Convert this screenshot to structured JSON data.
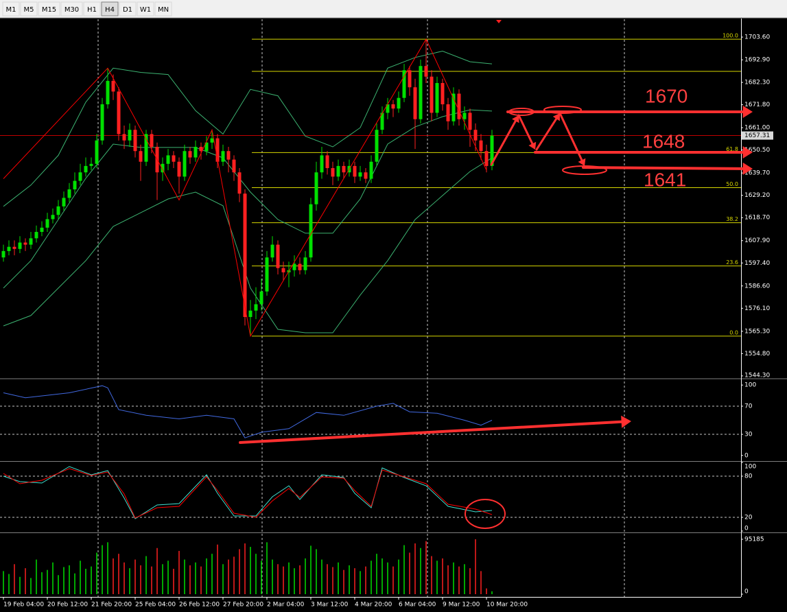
{
  "toolbar": {
    "buttons": [
      "M1",
      "M5",
      "M15",
      "M30",
      "H1",
      "H4",
      "D1",
      "W1",
      "MN"
    ],
    "active": "H4"
  },
  "chart_data": [
    {
      "type": "candlestick",
      "categories": [
        "19 Feb 04:00",
        null,
        null,
        null,
        null,
        null,
        null,
        null,
        "20 Feb 12:00",
        null,
        null,
        null,
        null,
        null,
        null,
        null,
        "21 Feb 20:00",
        null,
        null,
        null,
        null,
        null,
        null,
        null,
        "25 Feb 04:00",
        null,
        null,
        null,
        null,
        null,
        null,
        null,
        "26 Feb 12:00",
        null,
        null,
        null,
        null,
        null,
        null,
        null,
        "27 Feb 20:00",
        null,
        null,
        null,
        null,
        null,
        null,
        null,
        "2 Mar 04:00",
        null,
        null,
        null,
        null,
        null,
        null,
        null,
        "3 Mar 12:00",
        null,
        null,
        null,
        null,
        null,
        null,
        null,
        "4 Mar 20:00",
        null,
        null,
        null,
        null,
        null,
        null,
        null,
        "6 Mar 04:00",
        null,
        null,
        null,
        null,
        null,
        null,
        null,
        "9 Mar 12:00",
        null,
        null,
        null,
        null,
        null,
        null,
        null,
        "10 Mar 20:00",
        null
      ],
      "open": [
        1600,
        1603,
        1605,
        1604,
        1607,
        1606,
        1609,
        1612,
        1614,
        1618,
        1620,
        1624,
        1628,
        1632,
        1636,
        1640,
        1643,
        1644,
        1655,
        1672,
        1683,
        1678,
        1658,
        1655,
        1660,
        1650,
        1645,
        1658,
        1652,
        1640,
        1644,
        1648,
        1645,
        1638,
        1650,
        1647,
        1652,
        1650,
        1654,
        1656,
        1645,
        1650,
        1646,
        1640,
        1630,
        1572,
        1575,
        1578,
        1584,
        1600,
        1606,
        1595,
        1593,
        1594,
        1597,
        1594,
        1600,
        1625,
        1640,
        1648,
        1642,
        1638,
        1643,
        1640,
        1643,
        1638,
        1640,
        1637,
        1645,
        1660,
        1668,
        1672,
        1670,
        1675,
        1688,
        1680,
        1665,
        1690,
        1685,
        1668,
        1682,
        1672,
        1664,
        1677,
        1665,
        1668,
        1660,
        1655,
        1650,
        1643
      ],
      "high": [
        1606,
        1608,
        1608,
        1610,
        1609,
        1612,
        1615,
        1617,
        1621,
        1623,
        1627,
        1631,
        1635,
        1640,
        1644,
        1647,
        1647,
        1658,
        1675,
        1689,
        1686,
        1680,
        1662,
        1663,
        1662,
        1653,
        1660,
        1660,
        1654,
        1647,
        1651,
        1650,
        1647,
        1653,
        1652,
        1655,
        1654,
        1657,
        1660,
        1658,
        1653,
        1652,
        1648,
        1642,
        1632,
        1580,
        1586,
        1590,
        1603,
        1610,
        1608,
        1598,
        1598,
        1601,
        1600,
        1603,
        1628,
        1645,
        1652,
        1650,
        1645,
        1646,
        1645,
        1646,
        1645,
        1643,
        1642,
        1648,
        1663,
        1671,
        1675,
        1674,
        1678,
        1691,
        1690,
        1684,
        1693,
        1702.6,
        1688,
        1685,
        1684,
        1675,
        1680,
        1679,
        1671,
        1670,
        1663,
        1658,
        1653,
        1660
      ],
      "low": [
        1598,
        1601,
        1601,
        1602,
        1603,
        1604,
        1607,
        1610,
        1612,
        1616,
        1618,
        1622,
        1626,
        1630,
        1634,
        1638,
        1641,
        1642,
        1653,
        1670,
        1674,
        1655,
        1651,
        1652,
        1647,
        1636,
        1643,
        1649,
        1627,
        1636,
        1641,
        1642,
        1630,
        1636,
        1644,
        1645,
        1646,
        1648,
        1651,
        1642,
        1643,
        1640,
        1636,
        1626,
        1568,
        1563,
        1571,
        1575,
        1582,
        1598,
        1592,
        1589,
        1586,
        1591,
        1592,
        1592,
        1598,
        1622,
        1637,
        1639,
        1634,
        1636,
        1637,
        1638,
        1635,
        1636,
        1635,
        1635,
        1643,
        1658,
        1665,
        1666,
        1668,
        1673,
        1676,
        1651,
        1663,
        1682,
        1664,
        1666,
        1669,
        1660,
        1662,
        1662,
        1660,
        1652,
        1650,
        1646,
        1640,
        1641
      ],
      "close": [
        1603,
        1605,
        1604,
        1607,
        1606,
        1609,
        1612,
        1614,
        1618,
        1620,
        1624,
        1628,
        1632,
        1636,
        1640,
        1643,
        1644,
        1655,
        1672,
        1683,
        1678,
        1658,
        1655,
        1660,
        1650,
        1645,
        1658,
        1652,
        1640,
        1644,
        1648,
        1645,
        1638,
        1650,
        1647,
        1652,
        1650,
        1654,
        1656,
        1645,
        1650,
        1646,
        1640,
        1630,
        1572,
        1575,
        1578,
        1584,
        1600,
        1606,
        1595,
        1593,
        1594,
        1597,
        1594,
        1600,
        1625,
        1640,
        1648,
        1642,
        1638,
        1643,
        1640,
        1643,
        1638,
        1640,
        1637,
        1645,
        1660,
        1668,
        1672,
        1670,
        1675,
        1688,
        1680,
        1665,
        1690,
        1685,
        1668,
        1682,
        1672,
        1664,
        1677,
        1665,
        1668,
        1660,
        1655,
        1650,
        1643,
        1657.31
      ],
      "up_color": "#00e000",
      "down_color": "#ff2020",
      "ylim": [
        1543.3,
        1712.0
      ],
      "yticks": [
        {
          "value": 1703.6,
          "label": "1703.60"
        },
        {
          "value": 1692.9,
          "label": "1692.90"
        },
        {
          "value": 1682.3,
          "label": "1682.30"
        },
        {
          "value": 1671.8,
          "label": "1671.80"
        },
        {
          "value": 1661,
          "label": "1661.00"
        },
        {
          "value": 1650.5,
          "label": "1650.50"
        },
        {
          "value": 1639.7,
          "label": "1639.70"
        },
        {
          "value": 1629.2,
          "label": "1629.20"
        },
        {
          "value": 1618.7,
          "label": "1618.70"
        },
        {
          "value": 1607.9,
          "label": "1607.90"
        },
        {
          "value": 1597.4,
          "label": "1597.40"
        },
        {
          "value": 1586.6,
          "label": "1586.60"
        },
        {
          "value": 1576.1,
          "label": "1576.10"
        },
        {
          "value": 1565.3,
          "label": "1565.30"
        },
        {
          "value": 1554.8,
          "label": "1554.80"
        },
        {
          "value": 1544.3,
          "label": "1544.30"
        }
      ],
      "lines": [
        {
          "color": "#3cb371",
          "x": [
            0,
            5,
            10,
            15,
            20,
            25,
            30,
            35,
            40,
            45,
            50,
            55,
            60,
            65,
            70,
            75,
            80,
            85,
            89
          ],
          "values": [
            1624,
            1634,
            1648,
            1673,
            1689,
            1687,
            1686,
            1669,
            1658,
            1679,
            1676,
            1657,
            1652,
            1661,
            1689,
            1694,
            1697,
            1692,
            1691
          ]
        },
        {
          "color": "#3cb371",
          "x": [
            0,
            5,
            10,
            15,
            20,
            25,
            30,
            35,
            40,
            45,
            50,
            55,
            60,
            65,
            70,
            75,
            80,
            85,
            89
          ],
          "values": [
            1585.6,
            1598.5,
            1617.8,
            1637.2,
            1653.3,
            1651.7,
            1651.7,
            1651.7,
            1646.8,
            1630.7,
            1617.8,
            1611.4,
            1611.4,
            1627.5,
            1653.3,
            1661.4,
            1666.2,
            1669.4,
            1668.8
          ]
        },
        {
          "color": "#3cb371",
          "x": [
            0,
            5,
            10,
            15,
            20,
            25,
            30,
            35,
            40,
            45,
            50,
            55,
            60,
            65,
            70,
            75,
            80,
            85,
            89
          ],
          "values": [
            1567.8,
            1572.7,
            1585.6,
            1598.5,
            1614.6,
            1621,
            1627.5,
            1630.7,
            1624.3,
            1585.6,
            1566.2,
            1564.6,
            1564.6,
            1582.3,
            1598.5,
            1617.8,
            1629.1,
            1640.4,
            1646.8
          ]
        }
      ],
      "zigzag": {
        "color": "#ff0000",
        "x": [
          0,
          19,
          32,
          38,
          45,
          77,
          88
        ],
        "values": [
          1637,
          1689,
          1627,
          1660,
          1563,
          1702.6,
          1641
        ]
      },
      "fib": {
        "color": "#d8d800",
        "x_start": 45,
        "levels": [
          {
            "price": 1702.6,
            "label": "100.0"
          },
          {
            "price": 1687.5,
            "label": null
          },
          {
            "price": 1649.3,
            "label": "61.8"
          },
          {
            "price": 1632.8,
            "label": "50.0"
          },
          {
            "price": 1616.3,
            "label": "38.2"
          },
          {
            "price": 1596,
            "label": "23.6"
          },
          {
            "price": 1563,
            "label": "0.0"
          }
        ]
      },
      "current_price": 1657.31,
      "annotations": [
        "1670",
        "1648",
        "1641"
      ]
    },
    {
      "type": "line",
      "ylim": [
        -7,
        108
      ],
      "yticks": [
        100,
        70,
        30,
        0
      ],
      "levels": [
        70,
        30
      ],
      "series": [
        {
          "color": "#4169e1",
          "x": [
            0,
            4,
            12,
            18,
            19,
            21,
            26,
            32,
            37,
            42,
            44,
            47,
            52,
            57,
            62,
            68,
            71,
            74,
            79,
            84,
            87,
            89
          ],
          "values": [
            89,
            82,
            89,
            99,
            96,
            65,
            57,
            52,
            57,
            52,
            25,
            33,
            38,
            61,
            57,
            70,
            74,
            62,
            60,
            50,
            43,
            50
          ]
        }
      ]
    },
    {
      "type": "line",
      "ylim": [
        0,
        100
      ],
      "yticks": [
        100,
        80,
        20,
        0
      ],
      "levels": [
        80,
        20
      ],
      "series": [
        {
          "color": "#40e0d0",
          "x": [
            0,
            3,
            7,
            12,
            16,
            19,
            22,
            24,
            28,
            32,
            37,
            39,
            42,
            46,
            49,
            52,
            54,
            58,
            62,
            64,
            67,
            69,
            73,
            77,
            81,
            86,
            89
          ],
          "values": [
            80,
            72,
            70,
            94,
            82,
            88,
            48,
            18,
            38,
            40,
            82,
            55,
            22,
            22,
            50,
            66,
            46,
            82,
            78,
            55,
            34,
            92,
            78,
            66,
            36,
            28,
            30
          ]
        },
        {
          "color": "#ff0000",
          "x": [
            0,
            3,
            7,
            12,
            16,
            19,
            22,
            24,
            28,
            32,
            37,
            39,
            42,
            46,
            49,
            52,
            54,
            58,
            62,
            64,
            67,
            69,
            73,
            77,
            81,
            86,
            89
          ],
          "values": [
            84,
            69,
            74,
            91,
            81,
            86,
            54,
            19,
            34,
            36,
            79,
            59,
            26,
            20,
            44,
            62,
            49,
            79,
            77,
            59,
            36,
            89,
            79,
            69,
            39,
            32,
            24
          ]
        }
      ]
    },
    {
      "type": "bar",
      "ylim": [
        0,
        103500
      ],
      "yticks": [
        95185,
        0
      ],
      "values": [
        40000,
        35000,
        52000,
        30000,
        45000,
        28000,
        60000,
        38000,
        42000,
        55000,
        33000,
        47000,
        50000,
        36000,
        58000,
        44000,
        48000,
        72000,
        85000,
        90000,
        62000,
        70000,
        55000,
        45000,
        60000,
        50000,
        66000,
        48000,
        80000,
        52000,
        58000,
        44000,
        75000,
        60000,
        50000,
        55000,
        48000,
        62000,
        70000,
        86000,
        52000,
        60000,
        65000,
        78000,
        88000,
        82000,
        70000,
        58000,
        90000,
        60000,
        52000,
        48000,
        55000,
        45000,
        50000,
        62000,
        84000,
        78000,
        60000,
        52000,
        47000,
        55000,
        42000,
        50000,
        45000,
        40000,
        48000,
        58000,
        70000,
        62000,
        55000,
        48000,
        60000,
        85000,
        72000,
        88000,
        80000,
        92000,
        66000,
        58000,
        62000,
        50000,
        55000,
        48000,
        52000,
        45000,
        95185,
        40000,
        10000,
        5000
      ]
    }
  ]
}
